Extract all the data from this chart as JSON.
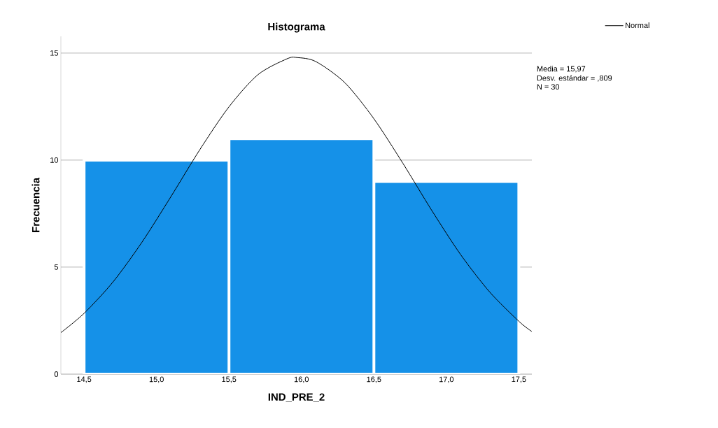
{
  "chart_data": {
    "type": "histogram",
    "title": "Histograma",
    "xlabel": "IND_PRE_2",
    "ylabel": "Frecuencia",
    "bins": [
      14.5,
      15.5,
      16.5,
      17.5
    ],
    "values": [
      10,
      11,
      9
    ],
    "color": "#1591e8",
    "series": [
      {
        "type": "line",
        "name": "Normal",
        "color": "#000000",
        "x": [
          14.34,
          14.5,
          14.7,
          14.9,
          15.1,
          15.3,
          15.5,
          15.7,
          15.9,
          15.97,
          16.1,
          16.3,
          16.5,
          16.7,
          16.9,
          17.1,
          17.3,
          17.5,
          17.59
        ],
        "values": [
          1.94,
          2.84,
          4.31,
          6.17,
          8.3,
          10.5,
          12.49,
          13.99,
          14.73,
          14.79,
          14.6,
          13.61,
          11.93,
          9.85,
          7.64,
          5.57,
          3.83,
          2.47,
          1.99
        ]
      }
    ],
    "xlim": [
      14.34,
      17.59
    ],
    "ylim": [
      0,
      15.78
    ],
    "xticks": [
      {
        "value": 14.5,
        "label": "14,5"
      },
      {
        "value": 15.0,
        "label": "15,0"
      },
      {
        "value": 15.5,
        "label": "15,5"
      },
      {
        "value": 16.0,
        "label": "16,0"
      },
      {
        "value": 16.5,
        "label": "16,5"
      },
      {
        "value": 17.0,
        "label": "17,0"
      },
      {
        "value": 17.5,
        "label": "17,5"
      }
    ],
    "yticks": [
      0,
      5,
      10,
      15
    ],
    "grid": "y",
    "legend": "top right",
    "annotations": [
      "Media = 15,97",
      "Desv. estándar = ,809",
      "N = 30"
    ]
  }
}
